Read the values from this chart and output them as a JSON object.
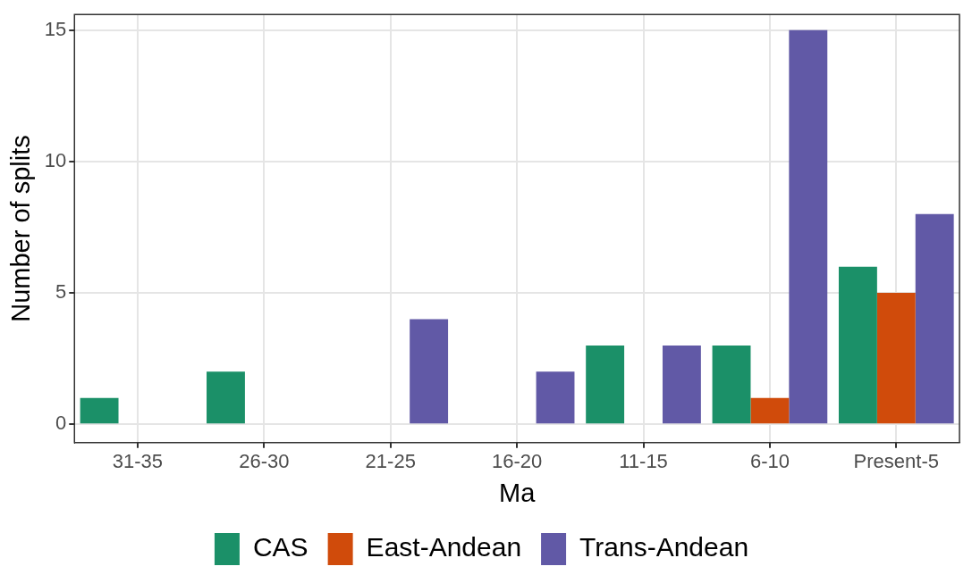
{
  "chart_data": {
    "type": "bar",
    "xlabel": "Ma",
    "ylabel": "Number of splits",
    "categories": [
      "31-35",
      "26-30",
      "21-25",
      "16-20",
      "11-15",
      "6-10",
      "Present-5"
    ],
    "series": [
      {
        "name": "CAS",
        "color": "#1b9068",
        "values": [
          1,
          2,
          0,
          0,
          3,
          3,
          6
        ]
      },
      {
        "name": "East-Andean",
        "color": "#d04b0b",
        "values": [
          0,
          0,
          0,
          0,
          0,
          1,
          5
        ]
      },
      {
        "name": "Trans-Andean",
        "color": "#6159a6",
        "values": [
          0,
          0,
          4,
          2,
          3,
          15,
          8
        ]
      }
    ],
    "ylim": [
      -0.7,
      15.6
    ],
    "yticks": [
      0,
      5,
      10,
      15
    ],
    "grid": true,
    "legend": "bottom"
  }
}
